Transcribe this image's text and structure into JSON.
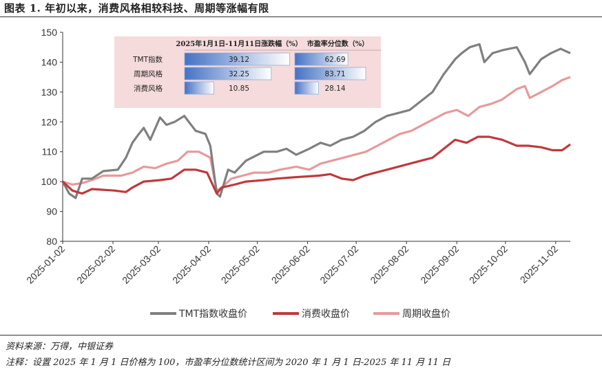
{
  "title": "图表 1. 年初以来，消费风格相较科技、周期等涨幅有限",
  "source": "资料来源：万得，中银证券",
  "note": "注释：设置 2025 年 1 月 1 日价格为 100，市盈率分位数统计区间为 2020 年 1 月 1 日-2025 年 11 月 11 日",
  "colors": {
    "tmt": "#7f7f7f",
    "consumer": "#c0393b",
    "cyclical": "#e79a9a",
    "table_bg": "#f5dbdc",
    "bar": "#4472c4"
  },
  "chart_data": {
    "type": "line",
    "x_tick_labels": [
      "2025-01-02",
      "2025-02-02",
      "2025-03-02",
      "2025-04-02",
      "2025-05-02",
      "2025-06-02",
      "2025-07-02",
      "2025-08-02",
      "2025-09-02",
      "2025-10-02",
      "2025-11-02"
    ],
    "x_range": [
      "2025-01-02",
      "2025-11-11"
    ],
    "ylim": [
      80,
      150
    ],
    "y_ticks": [
      80,
      90,
      100,
      110,
      120,
      130,
      140,
      150
    ],
    "grid": false,
    "legend_position": "bottom",
    "series": [
      {
        "key": "tmt",
        "name": "TMT指数收盘价",
        "points": [
          [
            "2025-01-02",
            100
          ],
          [
            "2025-01-06",
            96
          ],
          [
            "2025-01-10",
            94.5
          ],
          [
            "2025-01-14",
            101
          ],
          [
            "2025-01-20",
            101
          ],
          [
            "2025-01-27",
            103.5
          ],
          [
            "2025-02-05",
            104
          ],
          [
            "2025-02-10",
            108
          ],
          [
            "2025-02-14",
            113
          ],
          [
            "2025-02-18",
            116
          ],
          [
            "2025-02-21",
            118
          ],
          [
            "2025-02-25",
            114
          ],
          [
            "2025-03-03",
            121.5
          ],
          [
            "2025-03-07",
            119
          ],
          [
            "2025-03-12",
            120
          ],
          [
            "2025-03-18",
            122
          ],
          [
            "2025-03-25",
            117
          ],
          [
            "2025-03-31",
            116
          ],
          [
            "2025-04-03",
            112
          ],
          [
            "2025-04-07",
            96
          ],
          [
            "2025-04-09",
            95
          ],
          [
            "2025-04-14",
            104
          ],
          [
            "2025-04-18",
            103
          ],
          [
            "2025-04-25",
            107
          ],
          [
            "2025-05-06",
            110
          ],
          [
            "2025-05-14",
            110
          ],
          [
            "2025-05-20",
            111
          ],
          [
            "2025-05-26",
            109
          ],
          [
            "2025-06-03",
            111
          ],
          [
            "2025-06-10",
            113
          ],
          [
            "2025-06-16",
            112
          ],
          [
            "2025-06-23",
            114
          ],
          [
            "2025-06-30",
            115
          ],
          [
            "2025-07-07",
            117
          ],
          [
            "2025-07-14",
            120
          ],
          [
            "2025-07-21",
            122
          ],
          [
            "2025-07-28",
            123
          ],
          [
            "2025-08-04",
            124
          ],
          [
            "2025-08-11",
            127
          ],
          [
            "2025-08-18",
            130
          ],
          [
            "2025-08-25",
            136
          ],
          [
            "2025-09-01",
            141
          ],
          [
            "2025-09-05",
            143
          ],
          [
            "2025-09-10",
            145
          ],
          [
            "2025-09-16",
            146
          ],
          [
            "2025-09-19",
            140
          ],
          [
            "2025-09-24",
            143
          ],
          [
            "2025-09-30",
            144
          ],
          [
            "2025-10-09",
            145
          ],
          [
            "2025-10-14",
            140
          ],
          [
            "2025-10-17",
            136
          ],
          [
            "2025-10-24",
            141
          ],
          [
            "2025-10-30",
            143
          ],
          [
            "2025-11-05",
            144.5
          ],
          [
            "2025-11-11",
            143
          ]
        ]
      },
      {
        "key": "consumer",
        "name": "消费收盘价",
        "points": [
          [
            "2025-01-02",
            100
          ],
          [
            "2025-01-08",
            97
          ],
          [
            "2025-01-14",
            96
          ],
          [
            "2025-01-20",
            97.5
          ],
          [
            "2025-02-03",
            97
          ],
          [
            "2025-02-10",
            96.5
          ],
          [
            "2025-02-14",
            98
          ],
          [
            "2025-02-21",
            100
          ],
          [
            "2025-03-03",
            100.5
          ],
          [
            "2025-03-10",
            101
          ],
          [
            "2025-03-18",
            104
          ],
          [
            "2025-03-25",
            104
          ],
          [
            "2025-04-01",
            103
          ],
          [
            "2025-04-07",
            96
          ],
          [
            "2025-04-10",
            98
          ],
          [
            "2025-04-18",
            99
          ],
          [
            "2025-04-25",
            100
          ],
          [
            "2025-05-06",
            100.5
          ],
          [
            "2025-05-14",
            101
          ],
          [
            "2025-05-26",
            101.5
          ],
          [
            "2025-06-09",
            102
          ],
          [
            "2025-06-16",
            102.5
          ],
          [
            "2025-06-23",
            101
          ],
          [
            "2025-06-30",
            100.5
          ],
          [
            "2025-07-07",
            102
          ],
          [
            "2025-07-14",
            103
          ],
          [
            "2025-07-21",
            104
          ],
          [
            "2025-07-28",
            105
          ],
          [
            "2025-08-04",
            106
          ],
          [
            "2025-08-11",
            107
          ],
          [
            "2025-08-18",
            108
          ],
          [
            "2025-08-25",
            111
          ],
          [
            "2025-09-01",
            114
          ],
          [
            "2025-09-08",
            113
          ],
          [
            "2025-09-15",
            115
          ],
          [
            "2025-09-22",
            115
          ],
          [
            "2025-09-30",
            114
          ],
          [
            "2025-10-09",
            112
          ],
          [
            "2025-10-16",
            112
          ],
          [
            "2025-10-24",
            111.5
          ],
          [
            "2025-10-31",
            110.5
          ],
          [
            "2025-11-06",
            110.5
          ],
          [
            "2025-11-11",
            112.5
          ]
        ]
      },
      {
        "key": "cyclical",
        "name": "周期收盘价",
        "points": [
          [
            "2025-01-02",
            100
          ],
          [
            "2025-01-08",
            99
          ],
          [
            "2025-01-14",
            99.5
          ],
          [
            "2025-01-20",
            100.5
          ],
          [
            "2025-01-27",
            102
          ],
          [
            "2025-02-07",
            102
          ],
          [
            "2025-02-14",
            103
          ],
          [
            "2025-02-21",
            105
          ],
          [
            "2025-02-28",
            104.5
          ],
          [
            "2025-03-07",
            106
          ],
          [
            "2025-03-14",
            107
          ],
          [
            "2025-03-20",
            110
          ],
          [
            "2025-03-27",
            110
          ],
          [
            "2025-04-03",
            108
          ],
          [
            "2025-04-07",
            97
          ],
          [
            "2025-04-10",
            98
          ],
          [
            "2025-04-16",
            101
          ],
          [
            "2025-04-23",
            102
          ],
          [
            "2025-04-30",
            103
          ],
          [
            "2025-05-09",
            103
          ],
          [
            "2025-05-16",
            104
          ],
          [
            "2025-05-26",
            105
          ],
          [
            "2025-06-03",
            104
          ],
          [
            "2025-06-10",
            106
          ],
          [
            "2025-06-17",
            107
          ],
          [
            "2025-06-24",
            108
          ],
          [
            "2025-07-01",
            109
          ],
          [
            "2025-07-08",
            110
          ],
          [
            "2025-07-15",
            112
          ],
          [
            "2025-07-22",
            114
          ],
          [
            "2025-07-29",
            116
          ],
          [
            "2025-08-05",
            117
          ],
          [
            "2025-08-12",
            119
          ],
          [
            "2025-08-19",
            121
          ],
          [
            "2025-08-26",
            123
          ],
          [
            "2025-09-02",
            124
          ],
          [
            "2025-09-09",
            122
          ],
          [
            "2025-09-16",
            125
          ],
          [
            "2025-09-23",
            126
          ],
          [
            "2025-09-30",
            127.5
          ],
          [
            "2025-10-09",
            131
          ],
          [
            "2025-10-14",
            132
          ],
          [
            "2025-10-17",
            128
          ],
          [
            "2025-10-24",
            130
          ],
          [
            "2025-10-31",
            132
          ],
          [
            "2025-11-06",
            134
          ],
          [
            "2025-11-11",
            135
          ]
        ]
      }
    ],
    "table": {
      "header_change": "2025年1月1日-11月11日涨跌幅（%）",
      "header_pe": "市盈率分位数（%）",
      "rows": [
        {
          "label": "TMT指数",
          "change": 39.12,
          "change_label": "39.12",
          "pe": 62.69,
          "pe_label": "62.69"
        },
        {
          "label": "周期风格",
          "change": 32.25,
          "change_label": "32.25",
          "pe": 83.71,
          "pe_label": "83.71"
        },
        {
          "label": "消费风格",
          "change": 10.85,
          "change_label": "10.85",
          "pe": 28.14,
          "pe_label": "28.14"
        }
      ]
    }
  }
}
